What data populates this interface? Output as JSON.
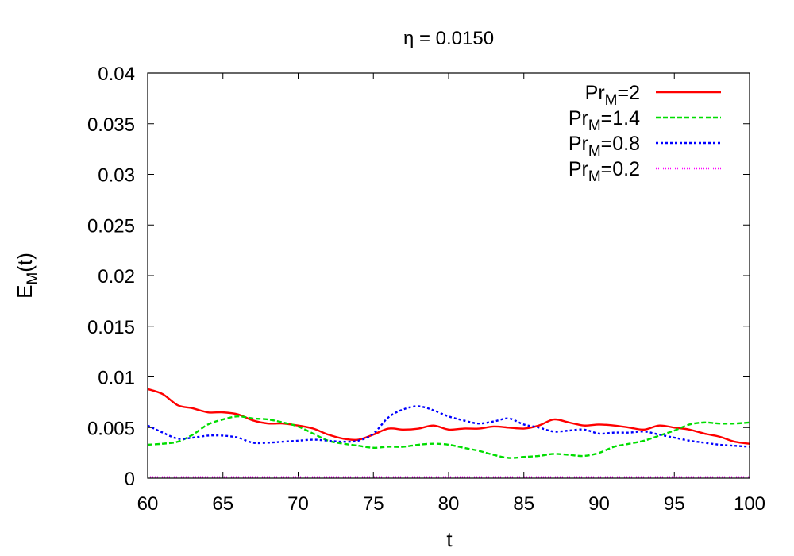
{
  "chart_data": {
    "type": "line",
    "title": "η = 0.0150",
    "xlabel": "t",
    "ylabel": {
      "main": "E",
      "sub": "M",
      "suffix": "(t)"
    },
    "xlim": [
      60,
      100
    ],
    "ylim": [
      0,
      0.04
    ],
    "xticks": [
      "60",
      "65",
      "70",
      "75",
      "80",
      "85",
      "90",
      "95",
      "100"
    ],
    "yticks": [
      "0",
      "0.005",
      "0.01",
      "0.015",
      "0.02",
      "0.025",
      "0.03",
      "0.035",
      "0.04"
    ],
    "grid": false,
    "legend_position": "top-right",
    "series": [
      {
        "name": "Pr_M=2",
        "label": {
          "main": "Pr",
          "sub": "M",
          "suffix": "=2"
        },
        "color": "#ff0000",
        "dash": "solid",
        "x": [
          60,
          61,
          62,
          63,
          64,
          65,
          66,
          67,
          68,
          69,
          70,
          71,
          72,
          73,
          74,
          75,
          76,
          77,
          78,
          79,
          80,
          81,
          82,
          83,
          84,
          85,
          86,
          87,
          88,
          89,
          90,
          91,
          92,
          93,
          94,
          95,
          96,
          97,
          98,
          99,
          100
        ],
        "y": [
          0.0088,
          0.0083,
          0.0072,
          0.0069,
          0.0065,
          0.0065,
          0.0063,
          0.0057,
          0.0054,
          0.0054,
          0.0052,
          0.0049,
          0.0043,
          0.0039,
          0.0038,
          0.0043,
          0.0049,
          0.0048,
          0.0049,
          0.0052,
          0.0048,
          0.0049,
          0.0049,
          0.0051,
          0.005,
          0.0049,
          0.0052,
          0.0058,
          0.0055,
          0.0052,
          0.0053,
          0.0052,
          0.005,
          0.0048,
          0.0052,
          0.005,
          0.0048,
          0.0044,
          0.0041,
          0.0036,
          0.0034
        ]
      },
      {
        "name": "Pr_M=1.4",
        "label": {
          "main": "Pr",
          "sub": "M",
          "suffix": "=1.4"
        },
        "color": "#00dd00",
        "dash": "6,3",
        "x": [
          60,
          61,
          62,
          63,
          64,
          65,
          66,
          67,
          68,
          69,
          70,
          71,
          72,
          73,
          74,
          75,
          76,
          77,
          78,
          79,
          80,
          81,
          82,
          83,
          84,
          85,
          86,
          87,
          88,
          89,
          90,
          91,
          92,
          93,
          94,
          95,
          96,
          97,
          98,
          99,
          100
        ],
        "y": [
          0.0033,
          0.0034,
          0.0036,
          0.0043,
          0.0053,
          0.0058,
          0.0061,
          0.0059,
          0.0058,
          0.0055,
          0.0051,
          0.0044,
          0.0037,
          0.0034,
          0.0032,
          0.003,
          0.0031,
          0.0031,
          0.0033,
          0.0034,
          0.0033,
          0.003,
          0.0027,
          0.0023,
          0.002,
          0.0021,
          0.0022,
          0.0024,
          0.0023,
          0.0022,
          0.0025,
          0.0031,
          0.0034,
          0.0037,
          0.0042,
          0.0047,
          0.0053,
          0.0055,
          0.0054,
          0.0054,
          0.0055
        ]
      },
      {
        "name": "Pr_M=0.8",
        "label": {
          "main": "Pr",
          "sub": "M",
          "suffix": "=0.8"
        },
        "color": "#0000ff",
        "dash": "3,3",
        "x": [
          60,
          61,
          62,
          63,
          64,
          65,
          66,
          67,
          68,
          69,
          70,
          71,
          72,
          73,
          74,
          75,
          76,
          77,
          78,
          79,
          80,
          81,
          82,
          83,
          84,
          85,
          86,
          87,
          88,
          89,
          90,
          91,
          92,
          93,
          94,
          95,
          96,
          97,
          98,
          99,
          100
        ],
        "y": [
          0.0052,
          0.0045,
          0.0039,
          0.004,
          0.0042,
          0.0042,
          0.004,
          0.0035,
          0.0035,
          0.0036,
          0.0037,
          0.0038,
          0.0037,
          0.0036,
          0.0037,
          0.0044,
          0.006,
          0.0068,
          0.0071,
          0.0067,
          0.0061,
          0.0057,
          0.0054,
          0.0056,
          0.0059,
          0.0053,
          0.005,
          0.0046,
          0.0047,
          0.0048,
          0.0044,
          0.0045,
          0.0045,
          0.0046,
          0.0043,
          0.004,
          0.0037,
          0.0035,
          0.0033,
          0.0032,
          0.0031
        ]
      },
      {
        "name": "Pr_M=0.2",
        "label": {
          "main": "Pr",
          "sub": "M",
          "suffix": "=0.2"
        },
        "color": "#ff00ff",
        "dash": "1,2",
        "x": [
          60,
          65,
          70,
          75,
          80,
          85,
          90,
          95,
          100
        ],
        "y": [
          0.0001,
          0.0001,
          0.0001,
          0.0001,
          0.0001,
          0.0001,
          0.0001,
          0.0001,
          0.0001
        ]
      }
    ]
  }
}
